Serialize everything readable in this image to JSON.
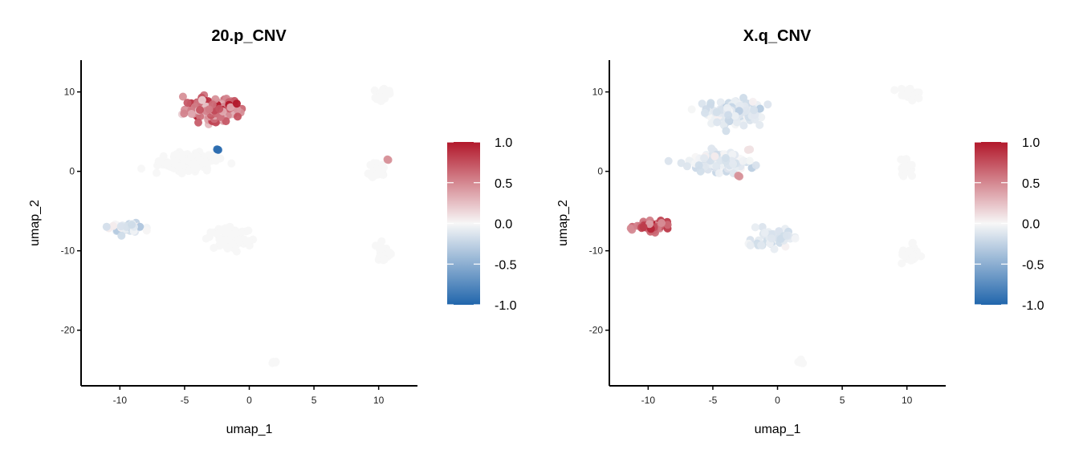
{
  "chart_data": [
    {
      "type": "scatter",
      "title": "20.p_CNV",
      "xlabel": "umap_1",
      "ylabel": "umap_2",
      "xlim": [
        -13,
        13
      ],
      "ylim": [
        -27,
        14
      ],
      "xticks": [
        -10,
        -5,
        0,
        5,
        10
      ],
      "yticks": [
        -20,
        -10,
        0,
        10
      ],
      "color_scale": {
        "min": -1.0,
        "max": 1.0,
        "ticks": [
          "1.0",
          "0.5",
          "0.0",
          "-0.5",
          "-1.0"
        ],
        "low": "#2166ac",
        "mid": "#f7f7f7",
        "high": "#b2182b"
      },
      "clusters": [
        {
          "cx": -2.8,
          "cy": 7.8,
          "sx": 2.0,
          "sy": 1.3,
          "n": 150,
          "mean": 0.55,
          "spread": 0.22
        },
        {
          "cx": -4.8,
          "cy": 1.2,
          "sx": 1.9,
          "sy": 1.0,
          "n": 160,
          "mean": 0.0,
          "spread": 0.0
        },
        {
          "cx": -2.3,
          "cy": 2.7,
          "sx": 0.12,
          "sy": 0.12,
          "n": 2,
          "mean": -0.95,
          "spread": 0.0
        },
        {
          "cx": -9.5,
          "cy": -7.0,
          "sx": 1.2,
          "sy": 0.5,
          "n": 45,
          "mean": -0.1,
          "spread": 0.1
        },
        {
          "cx": -1.5,
          "cy": -8.5,
          "sx": 1.6,
          "sy": 1.3,
          "n": 80,
          "mean": 0.0,
          "spread": 0.0
        },
        {
          "cx": 10.2,
          "cy": 9.8,
          "sx": 0.7,
          "sy": 0.6,
          "n": 25,
          "mean": 0.0,
          "spread": 0.0
        },
        {
          "cx": 10.0,
          "cy": 0.5,
          "sx": 0.6,
          "sy": 1.2,
          "n": 22,
          "mean": 0.0,
          "spread": 0.0
        },
        {
          "cx": 10.7,
          "cy": 1.5,
          "sx": 0.08,
          "sy": 0.08,
          "n": 2,
          "mean": 0.45,
          "spread": 0.0
        },
        {
          "cx": 10.3,
          "cy": -10.5,
          "sx": 0.5,
          "sy": 1.3,
          "n": 30,
          "mean": 0.0,
          "spread": 0.0
        },
        {
          "cx": 1.9,
          "cy": -24.0,
          "sx": 0.3,
          "sy": 0.2,
          "n": 5,
          "mean": 0.0,
          "spread": 0.0
        }
      ]
    },
    {
      "type": "scatter",
      "title": "X.q_CNV",
      "xlabel": "umap_1",
      "ylabel": "umap_2",
      "xlim": [
        -13,
        13
      ],
      "ylim": [
        -27,
        14
      ],
      "xticks": [
        -10,
        -5,
        0,
        5,
        10
      ],
      "yticks": [
        -20,
        -10,
        0,
        10
      ],
      "color_scale": {
        "min": -1.0,
        "max": 1.0,
        "ticks": [
          "1.0",
          "0.5",
          "0.0",
          "-0.5",
          "-1.0"
        ],
        "low": "#2166ac",
        "mid": "#f7f7f7",
        "high": "#b2182b"
      },
      "clusters": [
        {
          "cx": -3.5,
          "cy": 7.5,
          "sx": 1.9,
          "sy": 1.4,
          "n": 150,
          "mean": -0.12,
          "spread": 0.07
        },
        {
          "cx": -4.5,
          "cy": 1.2,
          "sx": 1.9,
          "sy": 1.1,
          "n": 150,
          "mean": -0.1,
          "spread": 0.06
        },
        {
          "cx": -2.2,
          "cy": 2.7,
          "sx": 0.1,
          "sy": 0.1,
          "n": 2,
          "mean": 0.1,
          "spread": 0.0
        },
        {
          "cx": -3.0,
          "cy": -0.6,
          "sx": 0.15,
          "sy": 0.1,
          "n": 2,
          "mean": 0.45,
          "spread": 0.0
        },
        {
          "cx": -9.6,
          "cy": -7.0,
          "sx": 1.2,
          "sy": 0.5,
          "n": 60,
          "mean": 0.62,
          "spread": 0.2
        },
        {
          "cx": -0.5,
          "cy": -8.5,
          "sx": 1.3,
          "sy": 1.2,
          "n": 50,
          "mean": -0.12,
          "spread": 0.06
        },
        {
          "cx": 10.2,
          "cy": 9.8,
          "sx": 0.7,
          "sy": 0.6,
          "n": 25,
          "mean": 0.0,
          "spread": 0.0
        },
        {
          "cx": 10.0,
          "cy": 0.5,
          "sx": 0.6,
          "sy": 1.2,
          "n": 22,
          "mean": 0.0,
          "spread": 0.0
        },
        {
          "cx": 10.3,
          "cy": -10.5,
          "sx": 0.5,
          "sy": 1.3,
          "n": 30,
          "mean": 0.0,
          "spread": 0.0
        },
        {
          "cx": 1.9,
          "cy": -24.0,
          "sx": 0.3,
          "sy": 0.2,
          "n": 5,
          "mean": 0.0,
          "spread": 0.0
        }
      ]
    }
  ]
}
